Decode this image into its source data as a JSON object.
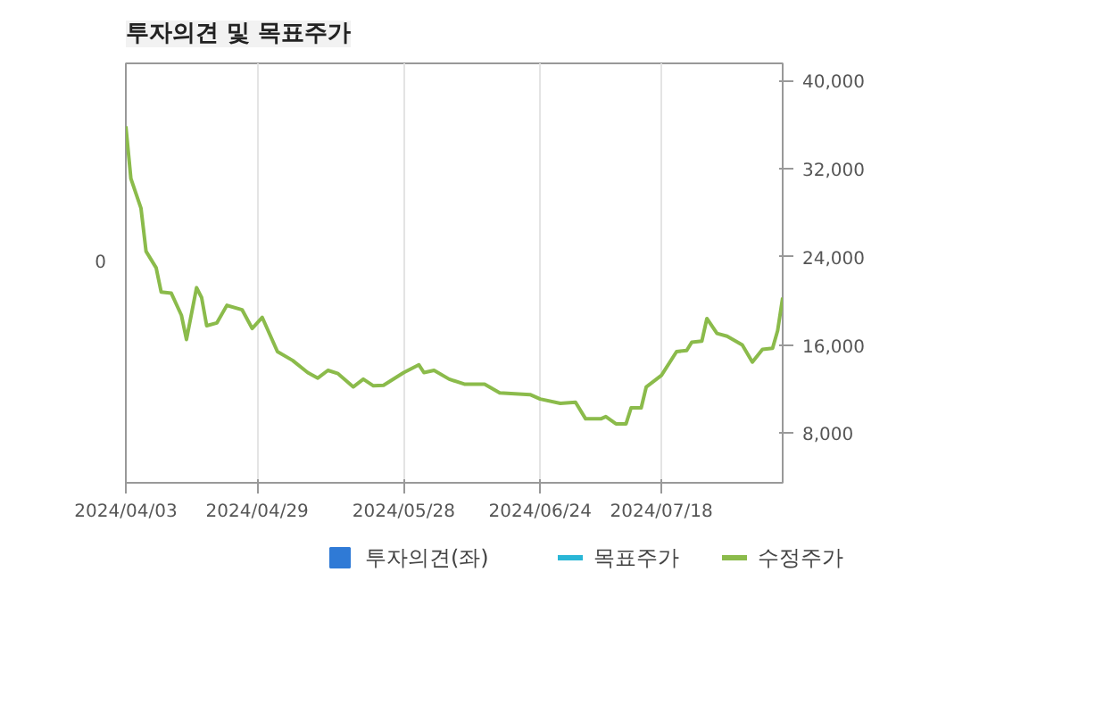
{
  "chart_data": {
    "type": "line",
    "title": "투자의견 및 목표주가",
    "x": [
      "2024-04-03",
      "2024-04-04",
      "2024-04-06",
      "2024-04-07",
      "2024-04-09",
      "2024-04-10",
      "2024-04-12",
      "2024-04-14",
      "2024-04-15",
      "2024-04-17",
      "2024-04-18",
      "2024-04-19",
      "2024-04-21",
      "2024-04-23",
      "2024-04-26",
      "2024-04-28",
      "2024-04-30",
      "2024-05-03",
      "2024-05-06",
      "2024-05-09",
      "2024-05-11",
      "2024-05-13",
      "2024-05-15",
      "2024-05-18",
      "2024-05-20",
      "2024-05-22",
      "2024-05-24",
      "2024-05-28",
      "2024-05-31",
      "2024-06-01",
      "2024-06-03",
      "2024-06-06",
      "2024-06-09",
      "2024-06-13",
      "2024-06-16",
      "2024-06-22",
      "2024-06-24",
      "2024-06-28",
      "2024-07-01",
      "2024-07-03",
      "2024-07-06",
      "2024-07-07",
      "2024-07-09",
      "2024-07-11",
      "2024-07-12",
      "2024-07-14",
      "2024-07-15",
      "2024-07-18",
      "2024-07-21",
      "2024-07-23",
      "2024-07-24",
      "2024-07-26",
      "2024-07-27",
      "2024-07-29",
      "2024-07-31",
      "2024-08-03",
      "2024-08-05",
      "2024-08-07",
      "2024-08-09",
      "2024-08-10",
      "2024-08-11"
    ],
    "series": [
      {
        "name": "투자의견(좌)",
        "type": "bar",
        "color": "#2f7ad6",
        "values": [
          null,
          null,
          null,
          null,
          null,
          null,
          null,
          null,
          null,
          null,
          null,
          null,
          null,
          null,
          null,
          null,
          null,
          null,
          null,
          null,
          null,
          null,
          null,
          null,
          null,
          null,
          null,
          null,
          null,
          null,
          null,
          null,
          null,
          null,
          null,
          null,
          null,
          null,
          null,
          null,
          null,
          null,
          null,
          null,
          null,
          null,
          null,
          null,
          null,
          null,
          null,
          null,
          null,
          null,
          null,
          null,
          null,
          null,
          null,
          null,
          null
        ]
      },
      {
        "name": "목표주가",
        "type": "line",
        "color": "#29b6d6",
        "values": [
          null,
          null,
          null,
          null,
          null,
          null,
          null,
          null,
          null,
          null,
          null,
          null,
          null,
          null,
          null,
          null,
          null,
          null,
          null,
          null,
          null,
          null,
          null,
          null,
          null,
          null,
          null,
          null,
          null,
          null,
          null,
          null,
          null,
          null,
          null,
          null,
          null,
          null,
          null,
          null,
          null,
          null,
          null,
          null,
          null,
          null,
          null,
          null,
          null,
          null,
          null,
          null,
          null,
          null,
          null,
          null,
          null,
          null,
          null,
          null,
          null
        ]
      },
      {
        "name": "수정주가",
        "color": "#8bbb4b",
        "values": [
          35850,
          31100,
          28400,
          24500,
          23000,
          20800,
          20700,
          18700,
          16500,
          21200,
          20300,
          17750,
          18000,
          19600,
          19200,
          17500,
          18500,
          15400,
          14600,
          13500,
          13000,
          13700,
          13400,
          12200,
          12900,
          12300,
          12350,
          13500,
          14200,
          13500,
          13700,
          12900,
          12450,
          12450,
          11650,
          11500,
          11100,
          10700,
          10800,
          9300,
          9300,
          9500,
          8850,
          8850,
          10300,
          10300,
          12200,
          13250,
          15400,
          15500,
          16250,
          16350,
          18400,
          17050,
          16800,
          16000,
          14450,
          15600,
          15700,
          17300,
          20300
        ]
      }
    ],
    "xlim": [
      "2024-04-03",
      "2024-08-11"
    ],
    "xticks": [
      {
        "value": "2024-04-03",
        "label": "2024/04/03"
      },
      {
        "value": "2024-04-29",
        "label": "2024/04/29"
      },
      {
        "value": "2024-05-28",
        "label": "2024/05/28"
      },
      {
        "value": "2024-06-24",
        "label": "2024/06/24"
      },
      {
        "value": "2024-07-18",
        "label": "2024/07/18"
      }
    ],
    "ylim": [
      3500,
      41550
    ],
    "yticks": [
      {
        "value": 8000,
        "label": "8,000"
      },
      {
        "value": 16000,
        "label": "16,000"
      },
      {
        "value": 24000,
        "label": "24,000"
      },
      {
        "value": 32000,
        "label": "32,000"
      },
      {
        "value": 40000,
        "label": "40,000"
      }
    ],
    "annotations": [
      "0"
    ],
    "grid": "x",
    "legend": "bottom",
    "line_style": "solid"
  }
}
